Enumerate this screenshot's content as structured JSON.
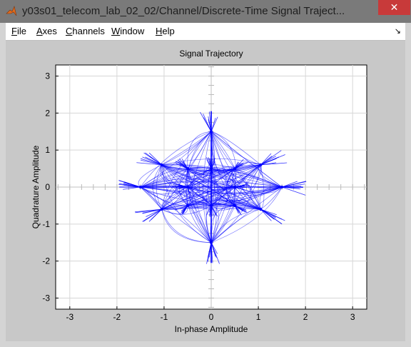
{
  "window": {
    "title": "y03s01_telecom_lab_02_02/Channel/Discrete-Time Signal Traject...",
    "close_label": "✕"
  },
  "menu": [
    {
      "label": "File",
      "key": "F",
      "rest": "ile"
    },
    {
      "label": "Axes",
      "key": "A",
      "rest": "xes"
    },
    {
      "label": "Channels",
      "key": "C",
      "rest": "hannels"
    },
    {
      "label": "Window",
      "key": "W",
      "rest": "indow"
    },
    {
      "label": "Help",
      "key": "H",
      "rest": "elp"
    }
  ],
  "chart_data": {
    "type": "line",
    "title": "Signal Trajectory",
    "xlabel": "In-phase Amplitude",
    "ylabel": "Quadrature Amplitude",
    "xlim": [
      -3.3,
      3.3
    ],
    "ylim": [
      -3.3,
      3.3
    ],
    "xticks": [
      "-3",
      "-2",
      "-1",
      "0",
      "1",
      "2",
      "3"
    ],
    "yticks": [
      "3",
      "2",
      "1",
      "0",
      "-1",
      "-2",
      "-3"
    ],
    "grid": true,
    "series": [
      {
        "color": "#0000ff",
        "constellation_points": [
          [
            0,
            1.5
          ],
          [
            0,
            -1.5
          ],
          [
            1.5,
            0
          ],
          [
            -1.5,
            0
          ],
          [
            0,
            0.5
          ],
          [
            0,
            -0.5
          ],
          [
            0.5,
            0
          ],
          [
            -0.5,
            0
          ],
          [
            0.5,
            0.5
          ],
          [
            -0.5,
            0.5
          ],
          [
            0.5,
            -0.5
          ],
          [
            -0.5,
            -0.5
          ],
          [
            1.05,
            0.6
          ],
          [
            -1.05,
            0.6
          ],
          [
            1.05,
            -0.6
          ],
          [
            -1.05,
            -0.6
          ]
        ]
      }
    ]
  }
}
